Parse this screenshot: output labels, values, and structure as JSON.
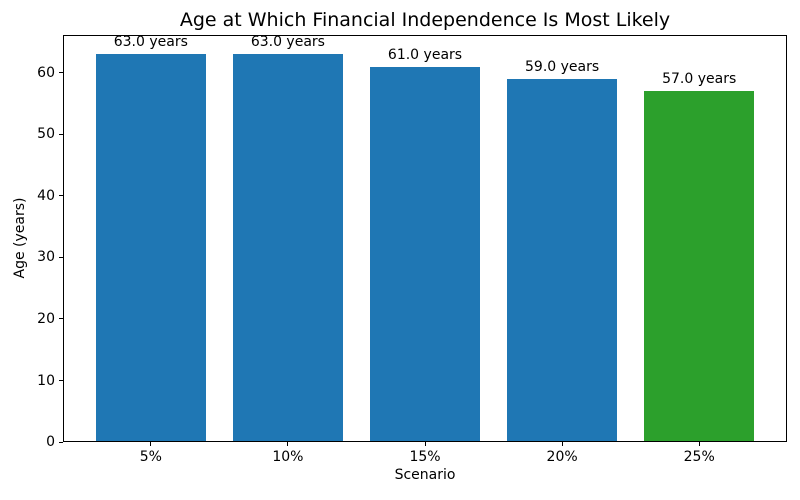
{
  "figure": {
    "background": "#ffffff",
    "text_color": "#000000"
  },
  "chart_data": {
    "type": "bar",
    "title": "Age at Which Financial Independence Is Most Likely",
    "xlabel": "Scenario",
    "ylabel": "Age (years)",
    "categories": [
      "5%",
      "10%",
      "15%",
      "20%",
      "25%"
    ],
    "values": [
      63.0,
      63.0,
      61.0,
      59.0,
      57.0
    ],
    "bar_labels": [
      "63.0 years",
      "63.0 years",
      "61.0 years",
      "59.0 years",
      "57.0 years"
    ],
    "bar_colors": [
      "#1f77b4",
      "#1f77b4",
      "#1f77b4",
      "#1f77b4",
      "#2ca02c"
    ],
    "yticks": [
      0,
      10,
      20,
      30,
      40,
      50,
      60
    ],
    "ylim": [
      0,
      66.15
    ],
    "xlim": [
      -0.64,
      4.64
    ],
    "bar_width": 0.8,
    "grid": false,
    "legend_position": "none"
  }
}
